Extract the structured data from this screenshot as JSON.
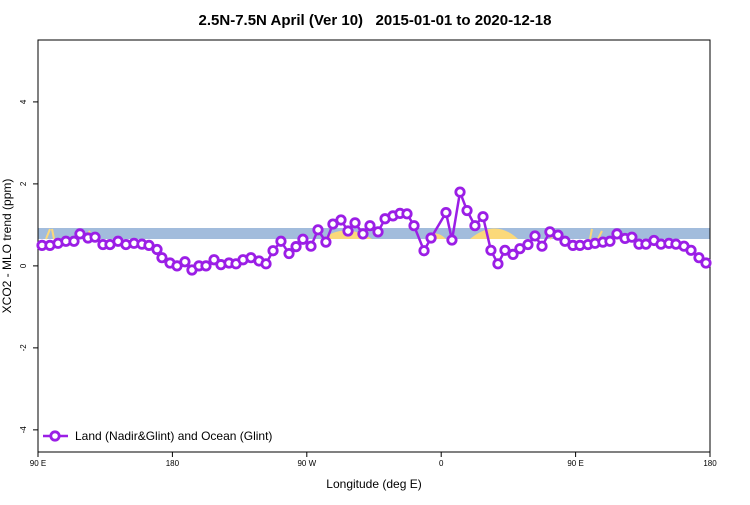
{
  "chart_data": {
    "type": "line",
    "title": "2.5N-7.5N April (Ver 10)   2015-01-01 to 2020-12-18",
    "x_label": "Longitude (deg E)",
    "y_label": "XCO2 - MLO trend (ppm)",
    "x": [
      92.7,
      98.0,
      103.4,
      108.7,
      114.1,
      118.1,
      123.5,
      128.2,
      133.5,
      138.2,
      143.6,
      148.9,
      154.3,
      159.6,
      164.3,
      169.7,
      173.0,
      178.4,
      183.1,
      188.4,
      193.1,
      197.8,
      202.5,
      207.9,
      212.5,
      217.9,
      222.6,
      227.3,
      232.6,
      238.0,
      242.7,
      247.4,
      252.7,
      258.1,
      262.8,
      267.4,
      272.8,
      277.5,
      282.8,
      287.5,
      292.9,
      297.6,
      302.3,
      307.6,
      312.3,
      317.7,
      322.4,
      327.7,
      332.4,
      337.1,
      341.8,
      348.5,
      353.2,
      363.2,
      367.2,
      372.6,
      377.3,
      382.6,
      388.0,
      393.3,
      398.0,
      402.7,
      408.1,
      412.7,
      418.1,
      422.8,
      427.5,
      432.8,
      438.2,
      442.9,
      448.2,
      452.9,
      458.3,
      463.0,
      468.3,
      473.0,
      477.7,
      483.1,
      487.7,
      492.4,
      497.1,
      502.5,
      507.2,
      512.5,
      517.2,
      522.6,
      527.3,
      532.6,
      537.3
    ],
    "series": [
      {
        "name": "Land (Nadir&Glint) and Ocean (Glint)",
        "color": "#9b1ee6",
        "values": [
          0.5,
          0.5,
          0.55,
          0.6,
          0.6,
          0.78,
          0.68,
          0.7,
          0.52,
          0.52,
          0.6,
          0.52,
          0.55,
          0.53,
          0.5,
          0.4,
          0.2,
          0.07,
          0,
          0.1,
          -0.1,
          0,
          0,
          0.15,
          0.03,
          0.07,
          0.05,
          0.15,
          0.2,
          0.12,
          0.05,
          0.37,
          0.6,
          0.3,
          0.47,
          0.65,
          0.48,
          0.88,
          0.58,
          1.02,
          1.12,
          0.85,
          1.05,
          0.78,
          0.98,
          0.83,
          1.15,
          1.22,
          1.28,
          1.27,
          0.98,
          0.37,
          0.68,
          1.3,
          0.63,
          1.8,
          1.35,
          0.98,
          1.2,
          0.38,
          0.05,
          0.38,
          0.28,
          0.42,
          0.52,
          0.73,
          0.48,
          0.83,
          0.75,
          0.6,
          0.5,
          0.5,
          0.52,
          0.55,
          0.58,
          0.6,
          0.78,
          0.67,
          0.7,
          0.53,
          0.53,
          0.62,
          0.53,
          0.55,
          0.53,
          0.48,
          0.38,
          0.2,
          0.07
        ]
      }
    ],
    "xlim": [
      90,
      540
    ],
    "xticks": [
      {
        "value": 90,
        "label": "90 E"
      },
      {
        "value": 180,
        "label": "180"
      },
      {
        "value": 270,
        "label": "90 W"
      },
      {
        "value": 360,
        "label": "0"
      },
      {
        "value": 450,
        "label": "90 E"
      },
      {
        "value": 540,
        "label": "180"
      }
    ],
    "ylim": [
      -4.54,
      5.51
    ],
    "yticks": [
      -4,
      -2,
      0,
      2,
      4
    ],
    "legend": "bottom-left"
  }
}
